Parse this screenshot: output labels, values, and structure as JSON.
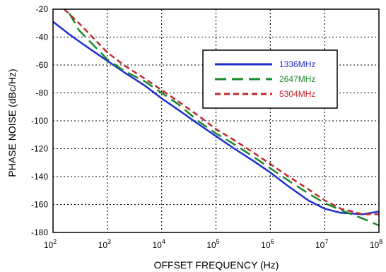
{
  "chart_data": {
    "type": "line",
    "xlabel": "OFFSET FREQUENCY (Hz)",
    "ylabel": "PHASE NOISE (dBc/Hz)",
    "xscale": "log",
    "xlim": [
      100,
      100000000
    ],
    "ylim": [
      -180,
      -20
    ],
    "x_ticks": [
      {
        "base": "10",
        "exp": "2"
      },
      {
        "base": "10",
        "exp": "3"
      },
      {
        "base": "10",
        "exp": "4"
      },
      {
        "base": "10",
        "exp": "5"
      },
      {
        "base": "10",
        "exp": "6"
      },
      {
        "base": "10",
        "exp": "7"
      },
      {
        "base": "10",
        "exp": "8"
      }
    ],
    "y_ticks": [
      "-20",
      "-40",
      "-60",
      "-80",
      "-100",
      "-120",
      "-140",
      "-160",
      "-180"
    ],
    "grid": "dotted",
    "legend_position": "top-right",
    "series": [
      {
        "name": "1336MHz",
        "color": "#1f2fd0",
        "style": "solid",
        "x": [
          100,
          200,
          300,
          500,
          1000,
          2000,
          5000,
          10000,
          20000,
          50000,
          100000,
          200000,
          500000,
          1000000,
          2000000,
          5000000,
          10000000,
          20000000,
          50000000,
          100000000
        ],
        "y": [
          -29,
          -38,
          -43,
          -49,
          -57,
          -65,
          -75,
          -84,
          -92,
          -103,
          -111,
          -119,
          -129,
          -137,
          -146,
          -157,
          -163,
          -166,
          -167,
          -165
        ]
      },
      {
        "name": "2647MHz",
        "color": "#1a8a2a",
        "style": "long-dash",
        "x": [
          200,
          300,
          500,
          1000,
          2000,
          5000,
          10000,
          20000,
          50000,
          100000,
          200000,
          500000,
          1000000,
          2000000,
          5000000,
          10000000,
          20000000,
          50000000,
          100000000
        ],
        "y": [
          -23,
          -35,
          -44,
          -56,
          -64,
          -72,
          -80,
          -88,
          -101,
          -109,
          -116,
          -126,
          -134,
          -142,
          -152,
          -159,
          -164,
          -170,
          -175
        ]
      },
      {
        "name": "5304MHz",
        "color": "#c0272d",
        "style": "short-dash",
        "x": [
          160,
          300,
          500,
          1000,
          2000,
          5000,
          10000,
          20000,
          50000,
          100000,
          200000,
          500000,
          1000000,
          2000000,
          5000000,
          10000000,
          20000000,
          50000000,
          100000000
        ],
        "y": [
          -20,
          -30,
          -39,
          -51,
          -60,
          -70,
          -78,
          -86,
          -97,
          -106,
          -113,
          -123,
          -131,
          -139,
          -149,
          -157,
          -163,
          -167,
          -167
        ]
      }
    ]
  }
}
